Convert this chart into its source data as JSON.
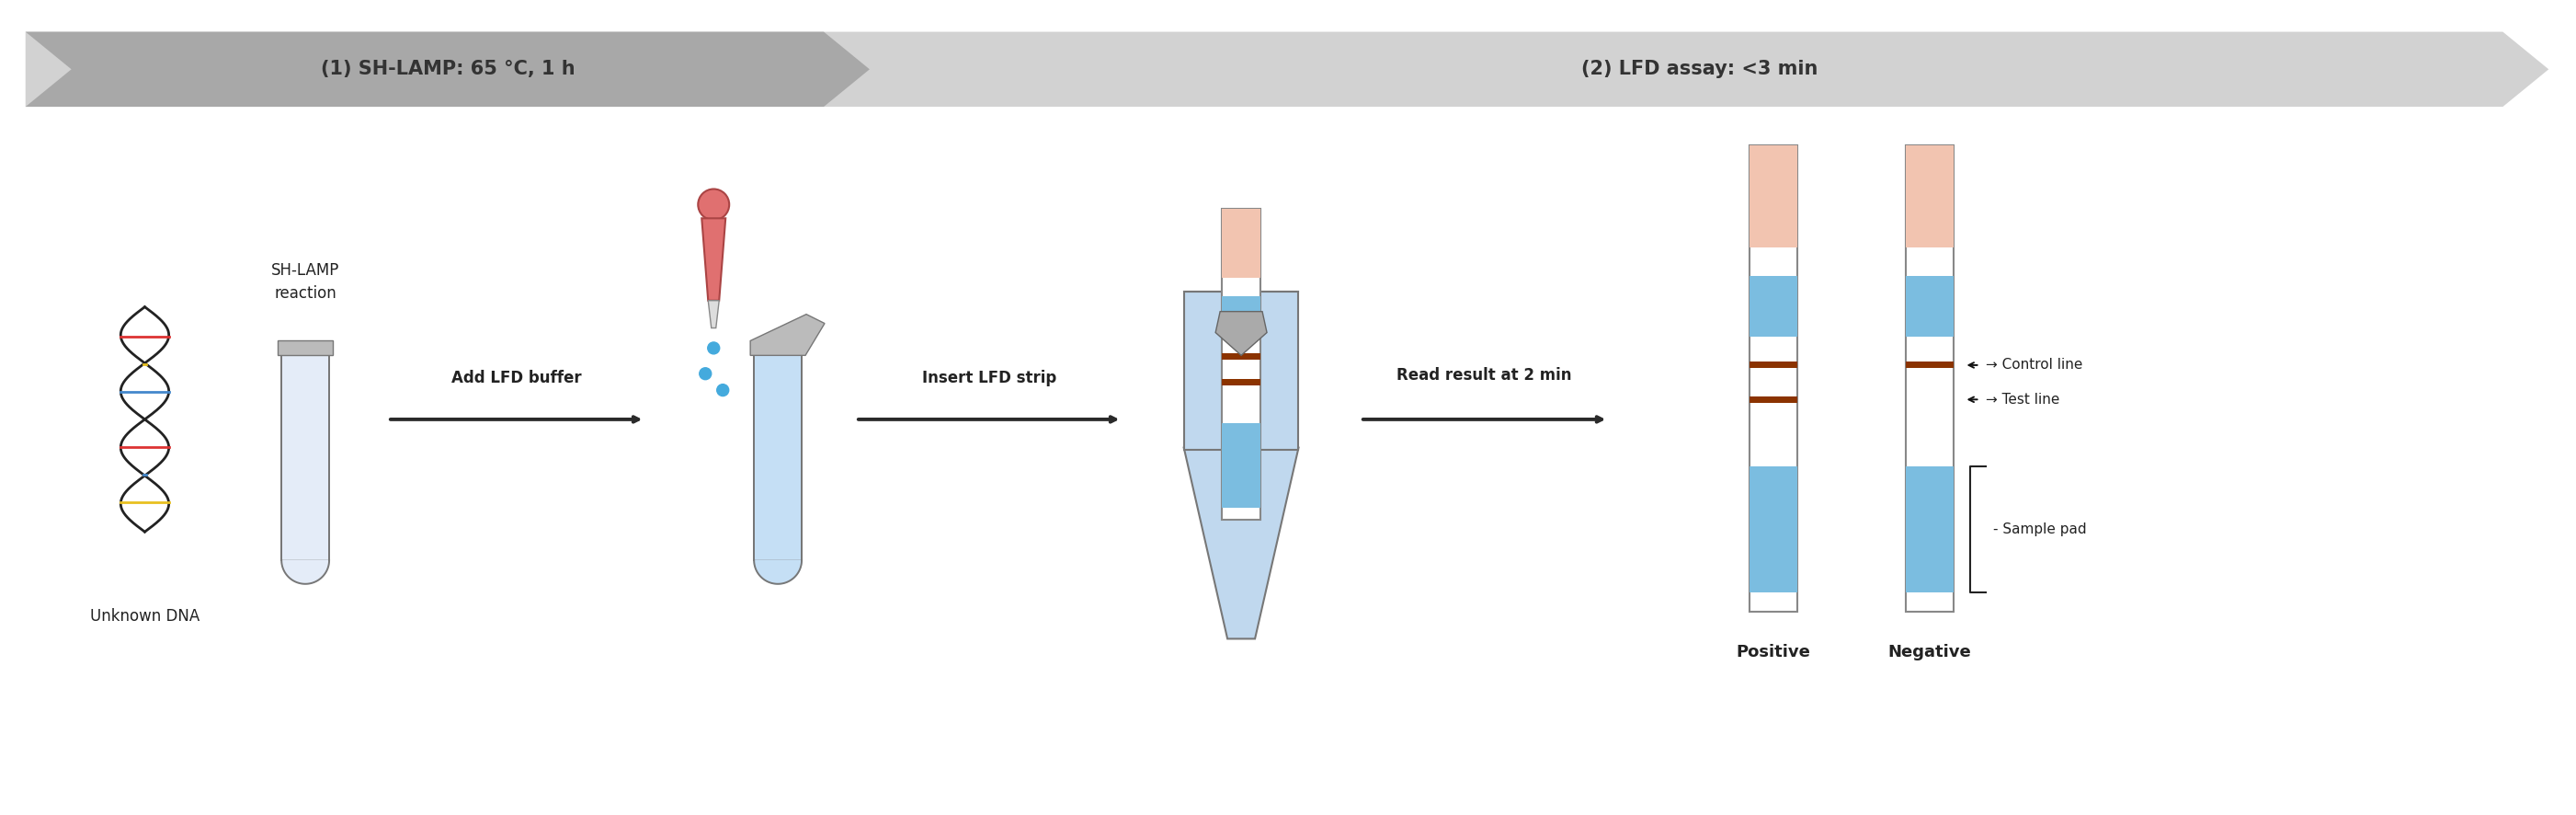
{
  "fig_width": 28.02,
  "fig_height": 8.86,
  "background_color": "#ffffff",
  "banner_color_dark": "#a8a8a8",
  "banner_color_light": "#d2d2d2",
  "banner_text1": "(1) SH-LAMP: 65 °C, 1 h",
  "banner_text2": "(2) LFD assay: <3 min",
  "arrow_color": "#2a2a2a",
  "label_add_lfd": "Add LFD buffer",
  "label_insert_lfd": "Insert LFD strip",
  "label_read_result": "Read result at 2 min",
  "label_unknown_dna": "Unknown DNA",
  "label_sh_lamp": "SH-LAMP\nreaction",
  "label_positive": "Positive",
  "label_negative": "Negative",
  "label_control_line": "→ Control line",
  "label_test_line": "→ Test line",
  "label_sample_pad": "- Sample pad",
  "strip_outline_color": "#888888",
  "strip_pink_color": "#f2c4b0",
  "strip_blue_color": "#7bbde0",
  "strip_red_line_color": "#8b3300",
  "dna_colors": [
    "#e8c020",
    "#4488cc",
    "#dd3333",
    "#88bb33",
    "#4488cc",
    "#e8c020",
    "#dd3333"
  ]
}
